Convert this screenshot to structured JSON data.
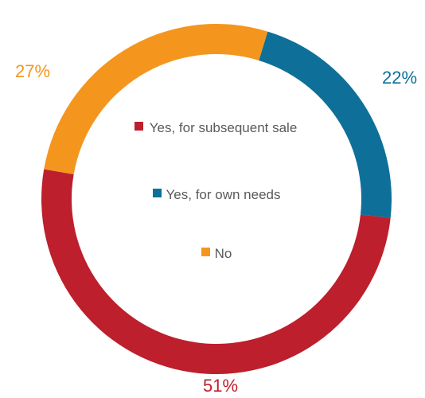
{
  "chart_data": {
    "type": "pie",
    "title": "",
    "donut": true,
    "categories": [
      "Yes, for own needs",
      "Yes, for subsequent sale",
      "No"
    ],
    "values": [
      22,
      51,
      27
    ],
    "labels": [
      "22%",
      "51%",
      "27%"
    ],
    "colors": [
      "#0e7099",
      "#bd1f2d",
      "#f4961e"
    ],
    "legend": {
      "placement": "center",
      "entries": [
        {
          "label": "Yes, for subsequent sale",
          "color": "#bd1f2d"
        },
        {
          "label": "Yes, for own needs",
          "color": "#0e7099"
        },
        {
          "label": "No",
          "color": "#f4961e"
        }
      ]
    }
  }
}
